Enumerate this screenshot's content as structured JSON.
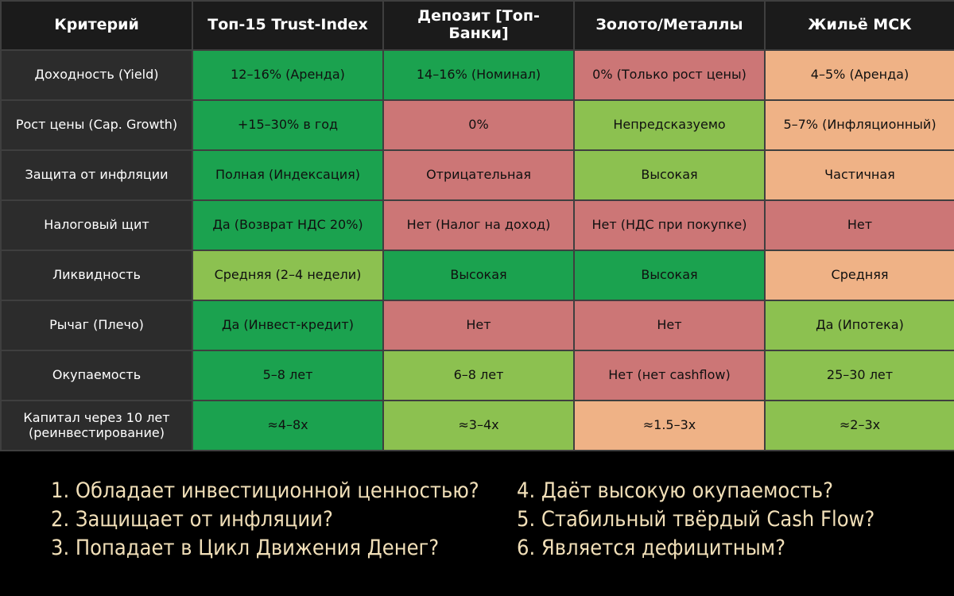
{
  "colors": {
    "page_background": "#000000",
    "header_background": "#1b1b1b",
    "criteria_background": "#2c2c2c",
    "grid_lines": "#3f3f3f",
    "dark_green": "#1ba24f",
    "light_green": "#8cc150",
    "red": "#cc7676",
    "peach": "#efb286",
    "question_text": "#f1dfb8"
  },
  "chart_data": {
    "type": "table",
    "columns": [
      "Критерий",
      "Топ-15 Trust-Index",
      "Депозит [Топ-Банки]",
      "Золото/Металлы",
      "Жильё МСК"
    ],
    "rows": [
      {
        "criterion": "Доходность (Yield)",
        "cells": [
          {
            "text": "12–16% (Аренда)",
            "rating": "dark_green"
          },
          {
            "text": "14–16% (Номинал)",
            "rating": "dark_green"
          },
          {
            "text": "0% (Только рост цены)",
            "rating": "red"
          },
          {
            "text": "4–5% (Аренда)",
            "rating": "peach"
          }
        ]
      },
      {
        "criterion": "Рост цены (Cap. Growth)",
        "cells": [
          {
            "text": "+15–30% в год",
            "rating": "dark_green"
          },
          {
            "text": "0%",
            "rating": "red"
          },
          {
            "text": "Непредсказуемо",
            "rating": "light_green"
          },
          {
            "text": "5–7% (Инфляционный)",
            "rating": "peach"
          }
        ]
      },
      {
        "criterion": "Защита от инфляции",
        "cells": [
          {
            "text": "Полная (Индексация)",
            "rating": "dark_green"
          },
          {
            "text": "Отрицательная",
            "rating": "red"
          },
          {
            "text": "Высокая",
            "rating": "light_green"
          },
          {
            "text": "Частичная",
            "rating": "peach"
          }
        ]
      },
      {
        "criterion": "Налоговый щит",
        "cells": [
          {
            "text": "Да (Возврат НДС 20%)",
            "rating": "dark_green"
          },
          {
            "text": "Нет (Налог на доход)",
            "rating": "red"
          },
          {
            "text": "Нет (НДС при покупке)",
            "rating": "red"
          },
          {
            "text": "Нет",
            "rating": "red"
          }
        ]
      },
      {
        "criterion": "Ликвидность",
        "cells": [
          {
            "text": "Средняя (2–4 недели)",
            "rating": "light_green"
          },
          {
            "text": "Высокая",
            "rating": "dark_green"
          },
          {
            "text": "Высокая",
            "rating": "dark_green"
          },
          {
            "text": "Средняя",
            "rating": "peach"
          }
        ]
      },
      {
        "criterion": "Рычаг (Плечо)",
        "cells": [
          {
            "text": "Да (Инвест-кредит)",
            "rating": "dark_green"
          },
          {
            "text": "Нет",
            "rating": "red"
          },
          {
            "text": "Нет",
            "rating": "red"
          },
          {
            "text": "Да (Ипотека)",
            "rating": "light_green"
          }
        ]
      },
      {
        "criterion": "Окупаемость",
        "cells": [
          {
            "text": "5–8 лет",
            "rating": "dark_green"
          },
          {
            "text": "6–8 лет",
            "rating": "light_green"
          },
          {
            "text": "Нет (нет cashflow)",
            "rating": "red"
          },
          {
            "text": "25–30 лет",
            "rating": "light_green"
          }
        ]
      },
      {
        "criterion": "Капитал через 10 лет (реинвестирование)",
        "cells": [
          {
            "text": "≈4–8x",
            "rating": "dark_green"
          },
          {
            "text": "≈3–4x",
            "rating": "light_green"
          },
          {
            "text": "≈1.5–3x",
            "rating": "peach"
          },
          {
            "text": "≈2–3x",
            "rating": "light_green"
          }
        ]
      }
    ]
  },
  "questions": {
    "left": [
      "1. Обладает инвестиционной ценностью?",
      "2. Защищает от инфляции?",
      "3. Попадает в Цикл Движения Денег?"
    ],
    "right": [
      "4. Даёт высокую окупаемость?",
      "5. Стабильный твёрдый Cash Flow?",
      "6. Является дефицитным?"
    ]
  }
}
